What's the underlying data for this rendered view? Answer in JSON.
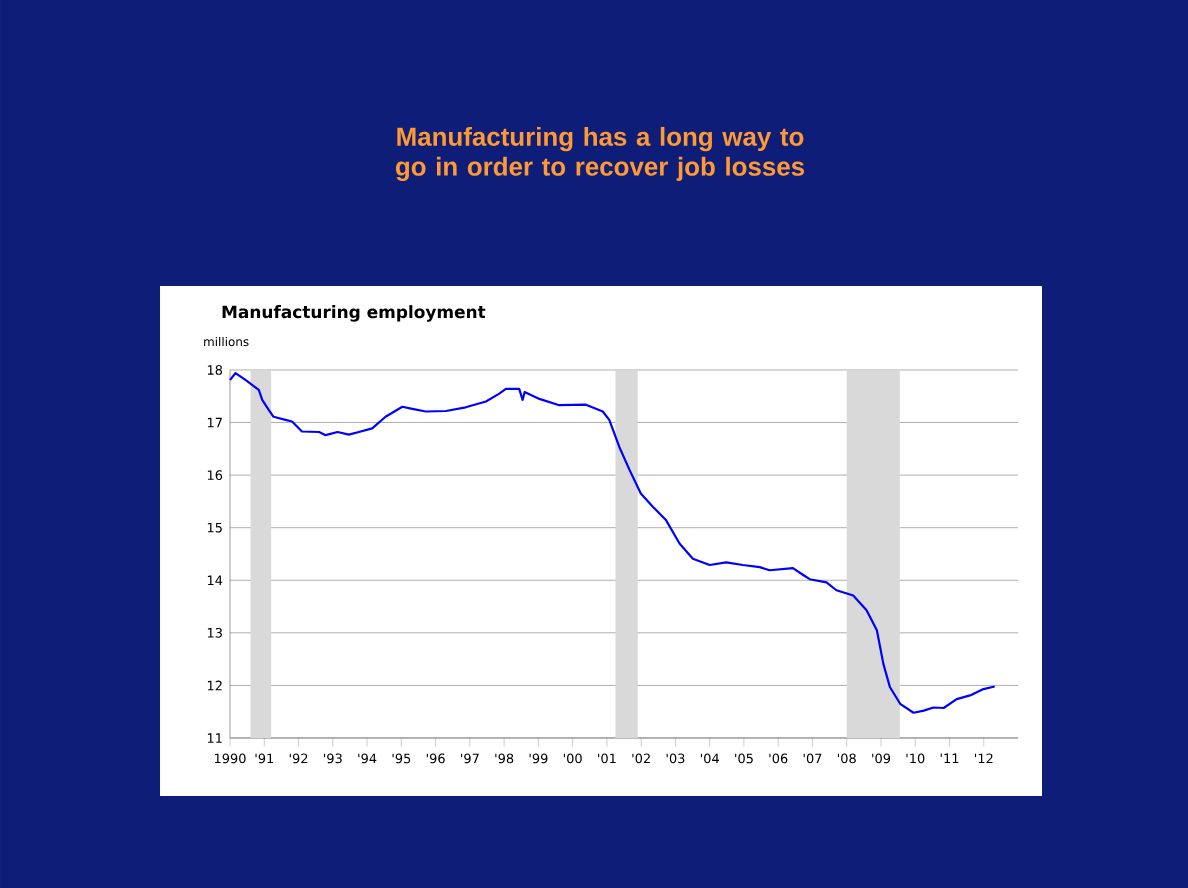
{
  "chart_data": {
    "type": "line",
    "title": "Manufacturing has a long way to go in order to recover job losses",
    "subtitle": "Manufacturing employment",
    "ylabel": "millions",
    "xlim": [
      1990,
      2013
    ],
    "ylim": [
      11,
      18
    ],
    "xticks": [
      {
        "value": 1990,
        "label": "1990"
      },
      {
        "value": 1991,
        "label": "'91"
      },
      {
        "value": 1992,
        "label": "'92"
      },
      {
        "value": 1993,
        "label": "'93"
      },
      {
        "value": 1994,
        "label": "'94"
      },
      {
        "value": 1995,
        "label": "'95"
      },
      {
        "value": 1996,
        "label": "'96"
      },
      {
        "value": 1997,
        "label": "'97"
      },
      {
        "value": 1998,
        "label": "'98"
      },
      {
        "value": 1999,
        "label": "'99"
      },
      {
        "value": 2000,
        "label": "'00"
      },
      {
        "value": 2001,
        "label": "'01"
      },
      {
        "value": 2002,
        "label": "'02"
      },
      {
        "value": 2003,
        "label": "'03"
      },
      {
        "value": 2004,
        "label": "'04"
      },
      {
        "value": 2005,
        "label": "'05"
      },
      {
        "value": 2006,
        "label": "'06"
      },
      {
        "value": 2007,
        "label": "'07"
      },
      {
        "value": 2008,
        "label": "'08"
      },
      {
        "value": 2009,
        "label": "'09"
      },
      {
        "value": 2010,
        "label": "'10"
      },
      {
        "value": 2011,
        "label": "'11"
      },
      {
        "value": 2012,
        "label": "'12"
      }
    ],
    "yticks": [
      11,
      12,
      13,
      14,
      15,
      16,
      17,
      18
    ],
    "grid": "y",
    "bands": [
      {
        "axis": "x",
        "from": 1990.6,
        "to": 1991.2,
        "color": "#d9d9d9"
      },
      {
        "axis": "x",
        "from": 2001.25,
        "to": 2001.9,
        "color": "#d9d9d9"
      },
      {
        "axis": "x",
        "from": 2008.0,
        "to": 2009.55,
        "color": "#d9d9d9"
      }
    ],
    "x": [
      1990.0,
      1990.16,
      1990.45,
      1990.84,
      1990.94,
      1991.13,
      1991.27,
      1991.62,
      1991.81,
      1992.1,
      1992.6,
      1992.79,
      1993.14,
      1993.47,
      1993.76,
      1994.15,
      1994.54,
      1995.03,
      1995.32,
      1995.71,
      1996.3,
      1996.88,
      1997.47,
      1997.86,
      1998.05,
      1998.44,
      1998.54,
      1998.6,
      1999.03,
      1999.61,
      2000.39,
      2000.88,
      2001.07,
      2001.36,
      2001.66,
      2001.99,
      2002.34,
      2002.73,
      2003.12,
      2003.51,
      2004.0,
      2004.48,
      2004.97,
      2005.46,
      2005.75,
      2006.43,
      2006.73,
      2006.92,
      2007.41,
      2007.7,
      2008.19,
      2008.58,
      2008.88,
      2009.07,
      2009.26,
      2009.56,
      2009.95,
      2010.25,
      2010.53,
      2010.83,
      2011.21,
      2011.6,
      2011.99,
      2012.32
    ],
    "series": [
      {
        "color": "#0000ff",
        "values": [
          17.81,
          17.94,
          17.81,
          17.62,
          17.43,
          17.24,
          17.11,
          17.05,
          17.02,
          16.83,
          16.82,
          16.76,
          16.82,
          16.77,
          16.82,
          16.89,
          17.11,
          17.3,
          17.26,
          17.21,
          17.22,
          17.29,
          17.4,
          17.55,
          17.64,
          17.64,
          17.43,
          17.58,
          17.45,
          17.33,
          17.34,
          17.21,
          17.05,
          16.54,
          16.1,
          15.65,
          15.4,
          15.14,
          14.7,
          14.41,
          14.29,
          14.34,
          14.29,
          14.25,
          14.19,
          14.23,
          14.1,
          14.02,
          13.96,
          13.81,
          13.71,
          13.43,
          13.05,
          12.41,
          11.97,
          11.65,
          11.48,
          11.52,
          11.58,
          11.57,
          11.74,
          11.81,
          11.93,
          11.98
        ]
      }
    ]
  }
}
